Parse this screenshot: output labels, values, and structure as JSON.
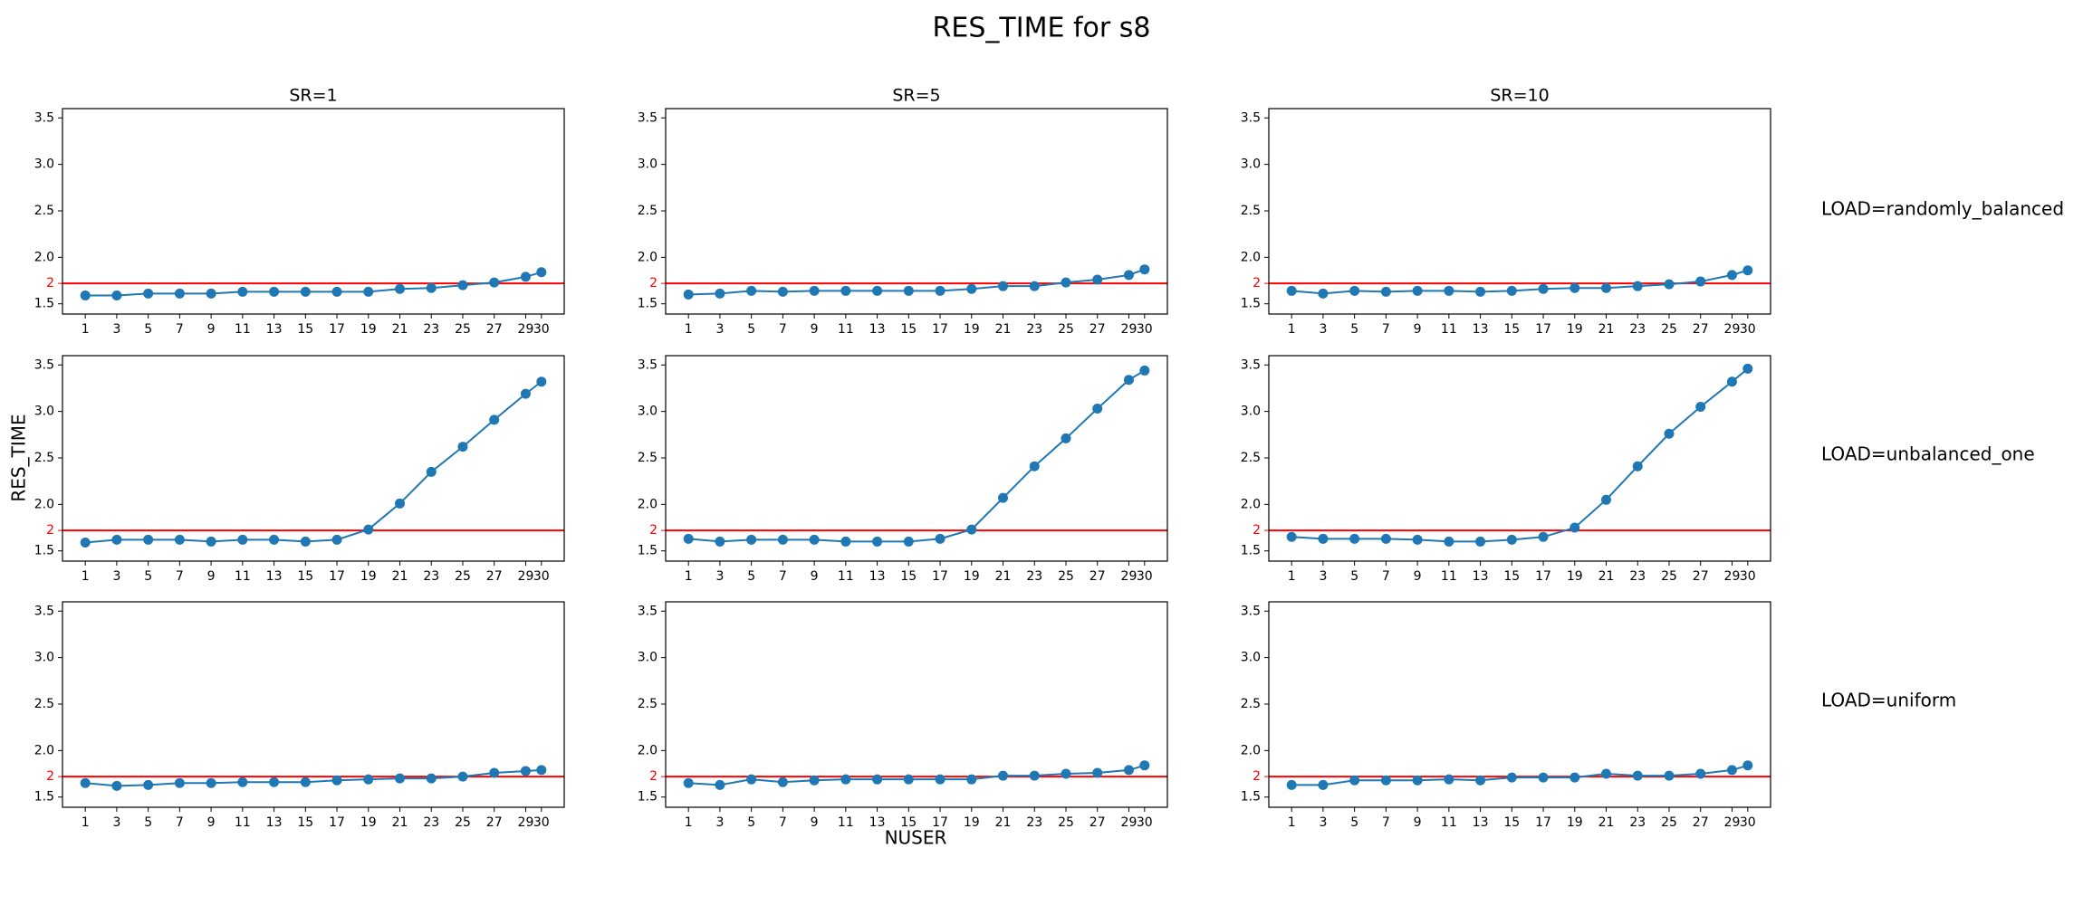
{
  "title": "RES_TIME for s8",
  "xlabel": "NUSER",
  "ylabel": "RES_TIME",
  "row_labels": [
    "LOAD=randomly_balanced",
    "LOAD=unbalanced_one",
    "LOAD=uniform"
  ],
  "chart_data": [
    {
      "type": "line",
      "title": "SR=1",
      "x": [
        1,
        3,
        5,
        7,
        9,
        11,
        13,
        15,
        17,
        19,
        21,
        23,
        25,
        27,
        29,
        30
      ],
      "xticks": [
        1,
        3,
        5,
        7,
        9,
        11,
        13,
        15,
        17,
        19,
        21,
        23,
        25,
        27,
        29,
        30
      ],
      "xlim": [
        -0.45,
        31.45
      ],
      "ylim": [
        1.39,
        3.6
      ],
      "yticks": [
        1.5,
        {
          "value": 2,
          "label": "2.0"
        },
        2.5,
        {
          "value": 3,
          "label": "3.0"
        },
        3.5
      ],
      "hline": {
        "value": 1.72,
        "label": "2"
      },
      "hline_color": "#ff0000",
      "series": [
        {
          "color": "#1f77b4",
          "values": [
            1.59,
            1.59,
            1.61,
            1.61,
            1.61,
            1.63,
            1.63,
            1.63,
            1.63,
            1.63,
            1.66,
            1.67,
            1.7,
            1.73,
            1.79,
            1.84
          ]
        }
      ]
    },
    {
      "type": "line",
      "title": "SR=5",
      "x": [
        1,
        3,
        5,
        7,
        9,
        11,
        13,
        15,
        17,
        19,
        21,
        23,
        25,
        27,
        29,
        30
      ],
      "xticks": [
        1,
        3,
        5,
        7,
        9,
        11,
        13,
        15,
        17,
        19,
        21,
        23,
        25,
        27,
        29,
        30
      ],
      "xlim": [
        -0.45,
        31.45
      ],
      "ylim": [
        1.39,
        3.6
      ],
      "yticks": [
        1.5,
        {
          "value": 2,
          "label": "2.0"
        },
        2.5,
        {
          "value": 3,
          "label": "3.0"
        },
        3.5
      ],
      "hline": {
        "value": 1.72,
        "label": "2"
      },
      "hline_color": "#ff0000",
      "series": [
        {
          "color": "#1f77b4",
          "values": [
            1.6,
            1.61,
            1.64,
            1.63,
            1.64,
            1.64,
            1.64,
            1.64,
            1.64,
            1.66,
            1.69,
            1.69,
            1.73,
            1.76,
            1.81,
            1.87
          ]
        }
      ]
    },
    {
      "type": "line",
      "title": "SR=10",
      "x": [
        1,
        3,
        5,
        7,
        9,
        11,
        13,
        15,
        17,
        19,
        21,
        23,
        25,
        27,
        29,
        30
      ],
      "xticks": [
        1,
        3,
        5,
        7,
        9,
        11,
        13,
        15,
        17,
        19,
        21,
        23,
        25,
        27,
        29,
        30
      ],
      "xlim": [
        -0.45,
        31.45
      ],
      "ylim": [
        1.39,
        3.6
      ],
      "yticks": [
        1.5,
        {
          "value": 2,
          "label": "2.0"
        },
        2.5,
        {
          "value": 3,
          "label": "3.0"
        },
        3.5
      ],
      "hline": {
        "value": 1.72,
        "label": "2"
      },
      "hline_color": "#ff0000",
      "series": [
        {
          "color": "#1f77b4",
          "values": [
            1.64,
            1.61,
            1.64,
            1.63,
            1.64,
            1.64,
            1.63,
            1.64,
            1.66,
            1.67,
            1.67,
            1.69,
            1.71,
            1.74,
            1.81,
            1.86
          ]
        }
      ]
    },
    {
      "type": "line",
      "x": [
        1,
        3,
        5,
        7,
        9,
        11,
        13,
        15,
        17,
        19,
        21,
        23,
        25,
        27,
        29,
        30
      ],
      "xticks": [
        1,
        3,
        5,
        7,
        9,
        11,
        13,
        15,
        17,
        19,
        21,
        23,
        25,
        27,
        29,
        30
      ],
      "xlim": [
        -0.45,
        31.45
      ],
      "ylim": [
        1.39,
        3.6
      ],
      "yticks": [
        1.5,
        {
          "value": 2,
          "label": "2.0"
        },
        2.5,
        {
          "value": 3,
          "label": "3.0"
        },
        3.5
      ],
      "hline": {
        "value": 1.72,
        "label": "2"
      },
      "hline_color": "#ff0000",
      "series": [
        {
          "color": "#1f77b4",
          "values": [
            1.59,
            1.62,
            1.62,
            1.62,
            1.6,
            1.62,
            1.62,
            1.6,
            1.62,
            1.73,
            2.01,
            2.35,
            2.62,
            2.91,
            3.19,
            3.32
          ]
        }
      ]
    },
    {
      "type": "line",
      "x": [
        1,
        3,
        5,
        7,
        9,
        11,
        13,
        15,
        17,
        19,
        21,
        23,
        25,
        27,
        29,
        30
      ],
      "xticks": [
        1,
        3,
        5,
        7,
        9,
        11,
        13,
        15,
        17,
        19,
        21,
        23,
        25,
        27,
        29,
        30
      ],
      "xlim": [
        -0.45,
        31.45
      ],
      "ylim": [
        1.39,
        3.6
      ],
      "yticks": [
        1.5,
        {
          "value": 2,
          "label": "2.0"
        },
        2.5,
        {
          "value": 3,
          "label": "3.0"
        },
        3.5
      ],
      "hline": {
        "value": 1.72,
        "label": "2"
      },
      "hline_color": "#ff0000",
      "series": [
        {
          "color": "#1f77b4",
          "values": [
            1.63,
            1.6,
            1.62,
            1.62,
            1.62,
            1.6,
            1.6,
            1.6,
            1.63,
            1.73,
            2.07,
            2.41,
            2.71,
            3.03,
            3.34,
            3.44
          ]
        }
      ]
    },
    {
      "type": "line",
      "x": [
        1,
        3,
        5,
        7,
        9,
        11,
        13,
        15,
        17,
        19,
        21,
        23,
        25,
        27,
        29,
        30
      ],
      "xticks": [
        1,
        3,
        5,
        7,
        9,
        11,
        13,
        15,
        17,
        19,
        21,
        23,
        25,
        27,
        29,
        30
      ],
      "xlim": [
        -0.45,
        31.45
      ],
      "ylim": [
        1.39,
        3.6
      ],
      "yticks": [
        1.5,
        {
          "value": 2,
          "label": "2.0"
        },
        2.5,
        {
          "value": 3,
          "label": "3.0"
        },
        3.5
      ],
      "hline": {
        "value": 1.72,
        "label": "2"
      },
      "hline_color": "#ff0000",
      "series": [
        {
          "color": "#1f77b4",
          "values": [
            1.65,
            1.63,
            1.63,
            1.63,
            1.62,
            1.6,
            1.6,
            1.62,
            1.65,
            1.75,
            2.05,
            2.41,
            2.76,
            3.05,
            3.32,
            3.46
          ]
        }
      ]
    },
    {
      "type": "line",
      "x": [
        1,
        3,
        5,
        7,
        9,
        11,
        13,
        15,
        17,
        19,
        21,
        23,
        25,
        27,
        29,
        30
      ],
      "xticks": [
        1,
        3,
        5,
        7,
        9,
        11,
        13,
        15,
        17,
        19,
        21,
        23,
        25,
        27,
        29,
        30
      ],
      "xlim": [
        -0.45,
        31.45
      ],
      "ylim": [
        1.39,
        3.6
      ],
      "yticks": [
        1.5,
        {
          "value": 2,
          "label": "2.0"
        },
        2.5,
        {
          "value": 3,
          "label": "3.0"
        },
        3.5
      ],
      "hline": {
        "value": 1.72,
        "label": "2"
      },
      "hline_color": "#ff0000",
      "series": [
        {
          "color": "#1f77b4",
          "values": [
            1.65,
            1.62,
            1.63,
            1.65,
            1.65,
            1.66,
            1.66,
            1.66,
            1.68,
            1.69,
            1.7,
            1.7,
            1.72,
            1.76,
            1.78,
            1.79
          ]
        }
      ]
    },
    {
      "type": "line",
      "x": [
        1,
        3,
        5,
        7,
        9,
        11,
        13,
        15,
        17,
        19,
        21,
        23,
        25,
        27,
        29,
        30
      ],
      "xticks": [
        1,
        3,
        5,
        7,
        9,
        11,
        13,
        15,
        17,
        19,
        21,
        23,
        25,
        27,
        29,
        30
      ],
      "xlim": [
        -0.45,
        31.45
      ],
      "ylim": [
        1.39,
        3.6
      ],
      "yticks": [
        1.5,
        {
          "value": 2,
          "label": "2.0"
        },
        2.5,
        {
          "value": 3,
          "label": "3.0"
        },
        3.5
      ],
      "hline": {
        "value": 1.72,
        "label": "2"
      },
      "hline_color": "#ff0000",
      "series": [
        {
          "color": "#1f77b4",
          "values": [
            1.65,
            1.63,
            1.69,
            1.66,
            1.68,
            1.69,
            1.69,
            1.69,
            1.69,
            1.69,
            1.73,
            1.73,
            1.75,
            1.76,
            1.79,
            1.84
          ]
        }
      ]
    },
    {
      "type": "line",
      "x": [
        1,
        3,
        5,
        7,
        9,
        11,
        13,
        15,
        17,
        19,
        21,
        23,
        25,
        27,
        29,
        30
      ],
      "xticks": [
        1,
        3,
        5,
        7,
        9,
        11,
        13,
        15,
        17,
        19,
        21,
        23,
        25,
        27,
        29,
        30
      ],
      "xlim": [
        -0.45,
        31.45
      ],
      "ylim": [
        1.39,
        3.6
      ],
      "yticks": [
        1.5,
        {
          "value": 2,
          "label": "2.0"
        },
        2.5,
        {
          "value": 3,
          "label": "3.0"
        },
        3.5
      ],
      "hline": {
        "value": 1.72,
        "label": "2"
      },
      "hline_color": "#ff0000",
      "series": [
        {
          "color": "#1f77b4",
          "values": [
            1.63,
            1.63,
            1.68,
            1.68,
            1.68,
            1.69,
            1.68,
            1.71,
            1.71,
            1.71,
            1.75,
            1.73,
            1.73,
            1.75,
            1.79,
            1.84
          ]
        }
      ]
    }
  ]
}
